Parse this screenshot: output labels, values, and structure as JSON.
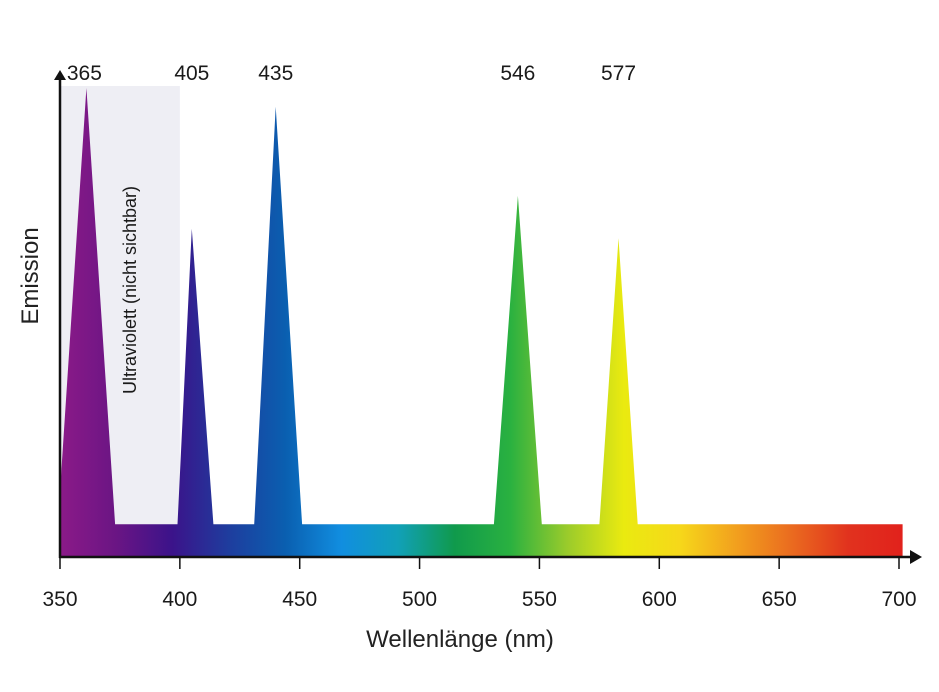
{
  "chart_data": {
    "type": "area",
    "xlabel": "Wellenlänge (nm)",
    "ylabel": "Emission",
    "xlim": [
      350,
      700
    ],
    "ylim": [
      0,
      100
    ],
    "x_ticks": [
      350,
      400,
      450,
      500,
      550,
      600,
      650,
      700
    ],
    "baseline": 7,
    "uv_region": {
      "x": [
        350,
        400
      ],
      "label": "Ultraviolett (nicht sichtbar)"
    },
    "peaks": [
      {
        "label": "365",
        "x": 361,
        "value": 100
      },
      {
        "label": "405",
        "x": 405,
        "value": 70
      },
      {
        "label": "435",
        "x": 440,
        "value": 96
      },
      {
        "label": "546",
        "x": 541,
        "value": 77
      },
      {
        "label": "577",
        "x": 583,
        "value": 68
      }
    ],
    "grid": false
  },
  "colors": {
    "uv_band": "#eeeef4",
    "axis": "#111111",
    "spectrum": [
      "#8b1a88",
      "#6a1584",
      "#3b138a",
      "#1e3d9e",
      "#0a5fb0",
      "#118ee0",
      "#11a0b8",
      "#109a4c",
      "#2ab140",
      "#9acb2b",
      "#eaea10",
      "#f6d81a",
      "#f2a01e",
      "#ea6a1f",
      "#e1321e",
      "#e1211c"
    ]
  }
}
